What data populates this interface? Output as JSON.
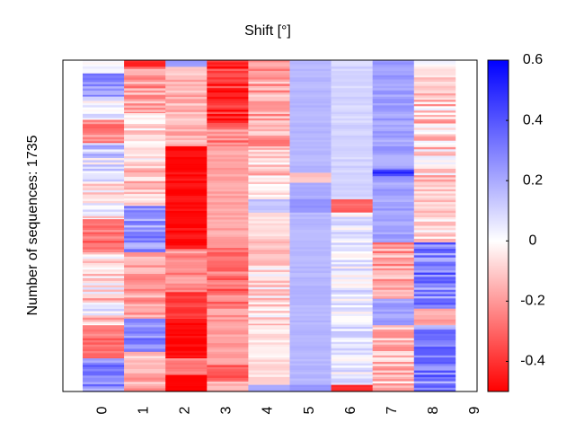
{
  "chart_data": {
    "type": "heatmap",
    "title": "Shift [°]",
    "ylabel": "Number of sequences: 1735",
    "xlabel": "",
    "x_tick_labels": [
      "0",
      "1",
      "2",
      "3",
      "4",
      "5",
      "6",
      "7",
      "8",
      "9"
    ],
    "colorbar": {
      "min": -0.5,
      "max": 0.6,
      "ticks": [
        -0.4,
        -0.2,
        0,
        0.2,
        0.4,
        0.6
      ],
      "tick_labels": [
        "-0.4",
        "-0.2",
        "0",
        "0.2",
        "0.4",
        "0.6"
      ],
      "colors": {
        "negative": "#ff0000",
        "zero": "#ffffff",
        "positive": "#0000ff"
      }
    },
    "columns": [
      {
        "label": "0",
        "segments": [
          {
            "from": 0.0,
            "to": 0.04,
            "mean": 0.0,
            "jitter": 0.05
          },
          {
            "from": 0.04,
            "to": 0.11,
            "mean": 0.25,
            "jitter": 0.12
          },
          {
            "from": 0.11,
            "to": 0.18,
            "mean": 0.03,
            "jitter": 0.1
          },
          {
            "from": 0.18,
            "to": 0.25,
            "mean": -0.25,
            "jitter": 0.1
          },
          {
            "from": 0.25,
            "to": 0.36,
            "mean": 0.1,
            "jitter": 0.18
          },
          {
            "from": 0.36,
            "to": 0.48,
            "mean": 0.0,
            "jitter": 0.15
          },
          {
            "from": 0.48,
            "to": 0.58,
            "mean": -0.28,
            "jitter": 0.08
          },
          {
            "from": 0.58,
            "to": 0.66,
            "mean": -0.08,
            "jitter": 0.12
          },
          {
            "from": 0.66,
            "to": 0.8,
            "mean": -0.05,
            "jitter": 0.18
          },
          {
            "from": 0.8,
            "to": 0.9,
            "mean": -0.28,
            "jitter": 0.08
          },
          {
            "from": 0.9,
            "to": 1.0,
            "mean": 0.28,
            "jitter": 0.12
          }
        ]
      },
      {
        "label": "1",
        "segments": [
          {
            "from": 0.0,
            "to": 0.02,
            "mean": -0.4,
            "jitter": 0.05
          },
          {
            "from": 0.02,
            "to": 0.16,
            "mean": -0.2,
            "jitter": 0.12
          },
          {
            "from": 0.16,
            "to": 0.3,
            "mean": -0.05,
            "jitter": 0.12
          },
          {
            "from": 0.3,
            "to": 0.44,
            "mean": -0.12,
            "jitter": 0.1
          },
          {
            "from": 0.44,
            "to": 0.58,
            "mean": 0.25,
            "jitter": 0.12
          },
          {
            "from": 0.58,
            "to": 0.78,
            "mean": -0.18,
            "jitter": 0.1
          },
          {
            "from": 0.78,
            "to": 0.88,
            "mean": 0.28,
            "jitter": 0.1
          },
          {
            "from": 0.88,
            "to": 1.0,
            "mean": -0.15,
            "jitter": 0.1
          }
        ]
      },
      {
        "label": "2",
        "segments": [
          {
            "from": 0.0,
            "to": 0.02,
            "mean": 0.22,
            "jitter": 0.03
          },
          {
            "from": 0.02,
            "to": 0.26,
            "mean": -0.15,
            "jitter": 0.07
          },
          {
            "from": 0.26,
            "to": 0.57,
            "mean": -0.47,
            "jitter": 0.04
          },
          {
            "from": 0.57,
            "to": 0.7,
            "mean": -0.22,
            "jitter": 0.08
          },
          {
            "from": 0.7,
            "to": 0.78,
            "mean": -0.4,
            "jitter": 0.06
          },
          {
            "from": 0.78,
            "to": 0.9,
            "mean": -0.48,
            "jitter": 0.03
          },
          {
            "from": 0.9,
            "to": 0.95,
            "mean": -0.25,
            "jitter": 0.05
          },
          {
            "from": 0.95,
            "to": 1.0,
            "mean": -0.5,
            "jitter": 0.01
          }
        ]
      },
      {
        "label": "3",
        "segments": [
          {
            "from": 0.0,
            "to": 0.19,
            "mean": -0.4,
            "jitter": 0.1
          },
          {
            "from": 0.19,
            "to": 0.26,
            "mean": -0.25,
            "jitter": 0.1
          },
          {
            "from": 0.26,
            "to": 0.56,
            "mean": -0.18,
            "jitter": 0.04
          },
          {
            "from": 0.56,
            "to": 0.75,
            "mean": -0.28,
            "jitter": 0.1
          },
          {
            "from": 0.75,
            "to": 0.92,
            "mean": -0.2,
            "jitter": 0.05
          },
          {
            "from": 0.92,
            "to": 0.97,
            "mean": -0.33,
            "jitter": 0.05
          },
          {
            "from": 0.97,
            "to": 1.0,
            "mean": -0.15,
            "jitter": 0.05
          }
        ]
      },
      {
        "label": "4",
        "segments": [
          {
            "from": 0.0,
            "to": 0.27,
            "mean": -0.18,
            "jitter": 0.12
          },
          {
            "from": 0.27,
            "to": 0.42,
            "mean": -0.1,
            "jitter": 0.12
          },
          {
            "from": 0.42,
            "to": 0.46,
            "mean": 0.15,
            "jitter": 0.03
          },
          {
            "from": 0.46,
            "to": 0.54,
            "mean": -0.06,
            "jitter": 0.03
          },
          {
            "from": 0.54,
            "to": 0.62,
            "mean": -0.12,
            "jitter": 0.08
          },
          {
            "from": 0.62,
            "to": 0.8,
            "mean": -0.06,
            "jitter": 0.12
          },
          {
            "from": 0.8,
            "to": 0.98,
            "mean": -0.05,
            "jitter": 0.05
          },
          {
            "from": 0.98,
            "to": 1.0,
            "mean": 0.2,
            "jitter": 0.02
          }
        ]
      },
      {
        "label": "5",
        "segments": [
          {
            "from": 0.0,
            "to": 0.34,
            "mean": 0.17,
            "jitter": 0.02
          },
          {
            "from": 0.34,
            "to": 0.37,
            "mean": -0.12,
            "jitter": 0.02
          },
          {
            "from": 0.37,
            "to": 0.42,
            "mean": 0.2,
            "jitter": 0.02
          },
          {
            "from": 0.42,
            "to": 0.46,
            "mean": 0.25,
            "jitter": 0.02
          },
          {
            "from": 0.46,
            "to": 0.98,
            "mean": 0.17,
            "jitter": 0.02
          },
          {
            "from": 0.98,
            "to": 1.0,
            "mean": 0.25,
            "jitter": 0.02
          }
        ]
      },
      {
        "label": "6",
        "segments": [
          {
            "from": 0.0,
            "to": 0.34,
            "mean": 0.1,
            "jitter": 0.03
          },
          {
            "from": 0.34,
            "to": 0.42,
            "mean": 0.1,
            "jitter": 0.03
          },
          {
            "from": 0.42,
            "to": 0.46,
            "mean": -0.3,
            "jitter": 0.03
          },
          {
            "from": 0.46,
            "to": 0.98,
            "mean": 0.05,
            "jitter": 0.1
          },
          {
            "from": 0.98,
            "to": 1.0,
            "mean": -0.4,
            "jitter": 0.03
          }
        ]
      },
      {
        "label": "7",
        "segments": [
          {
            "from": 0.0,
            "to": 0.33,
            "mean": 0.22,
            "jitter": 0.05
          },
          {
            "from": 0.33,
            "to": 0.35,
            "mean": 0.5,
            "jitter": 0.08
          },
          {
            "from": 0.35,
            "to": 0.55,
            "mean": 0.22,
            "jitter": 0.05
          },
          {
            "from": 0.55,
            "to": 0.72,
            "mean": -0.18,
            "jitter": 0.12
          },
          {
            "from": 0.72,
            "to": 0.8,
            "mean": 0.22,
            "jitter": 0.05
          },
          {
            "from": 0.8,
            "to": 1.0,
            "mean": -0.12,
            "jitter": 0.12
          }
        ]
      },
      {
        "label": "8",
        "segments": [
          {
            "from": 0.0,
            "to": 0.1,
            "mean": -0.05,
            "jitter": 0.1
          },
          {
            "from": 0.1,
            "to": 0.37,
            "mean": -0.1,
            "jitter": 0.15
          },
          {
            "from": 0.37,
            "to": 0.55,
            "mean": -0.08,
            "jitter": 0.1
          },
          {
            "from": 0.55,
            "to": 0.75,
            "mean": 0.3,
            "jitter": 0.15
          },
          {
            "from": 0.75,
            "to": 0.8,
            "mean": -0.2,
            "jitter": 0.08
          },
          {
            "from": 0.8,
            "to": 1.0,
            "mean": 0.3,
            "jitter": 0.15
          }
        ]
      }
    ]
  }
}
